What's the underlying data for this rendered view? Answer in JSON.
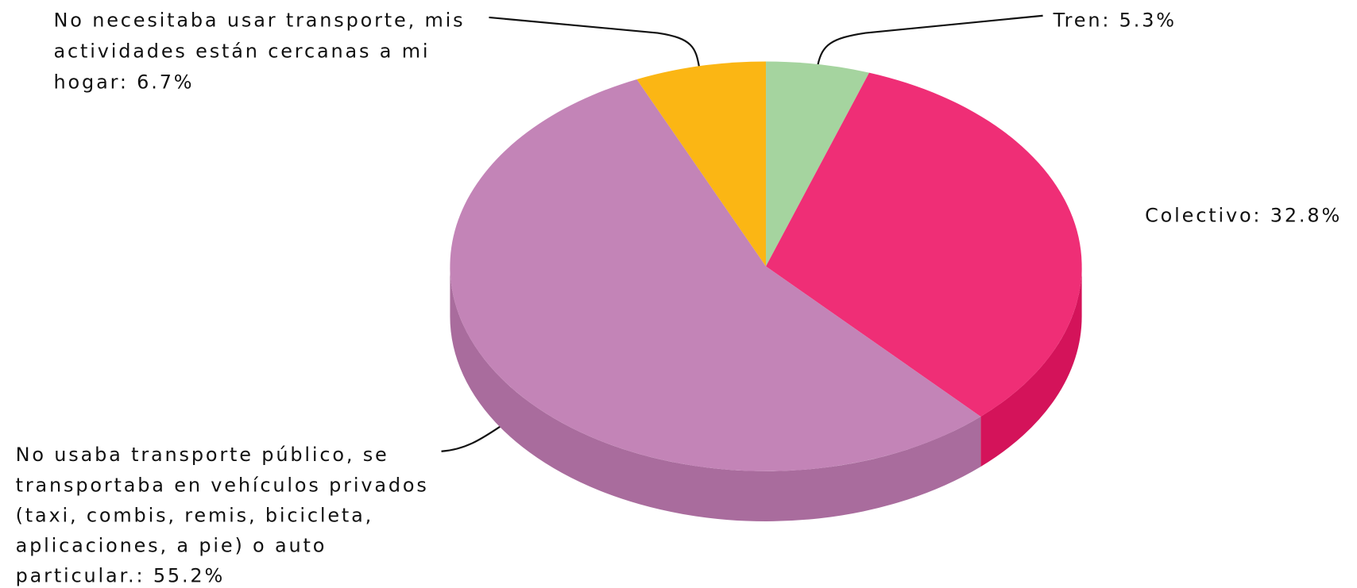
{
  "chart_data": {
    "type": "pie3d",
    "categories": [
      "Tren",
      "Colectivo",
      "No usaba transporte público, se transportaba en vehículos privados (taxi, combis, remis, bicicleta, aplicaciones, a pie) o auto particular.",
      "No necesitaba usar transporte, mis actividades están cercanas a mi hogar"
    ],
    "values": [
      5.3,
      32.8,
      55.2,
      6.7
    ],
    "value_labels": [
      "Tren: 5.3%",
      "Colectivo: 32.8%",
      "No usaba transporte público, se transportaba en vehículos privados (taxi, combis, remis, bicicleta, aplicaciones, a pie) o auto particular.: 55.2%",
      "No necesitaba usar transporte, mis actividades están cercanas a mi hogar: 6.7%"
    ],
    "colors": [
      "#a5d49f",
      "#ef2e76",
      "#c384b7",
      "#fbb614"
    ],
    "side_colors": [
      "#86b880",
      "#d4135a",
      "#a96c9d",
      "#d99a08"
    ]
  }
}
